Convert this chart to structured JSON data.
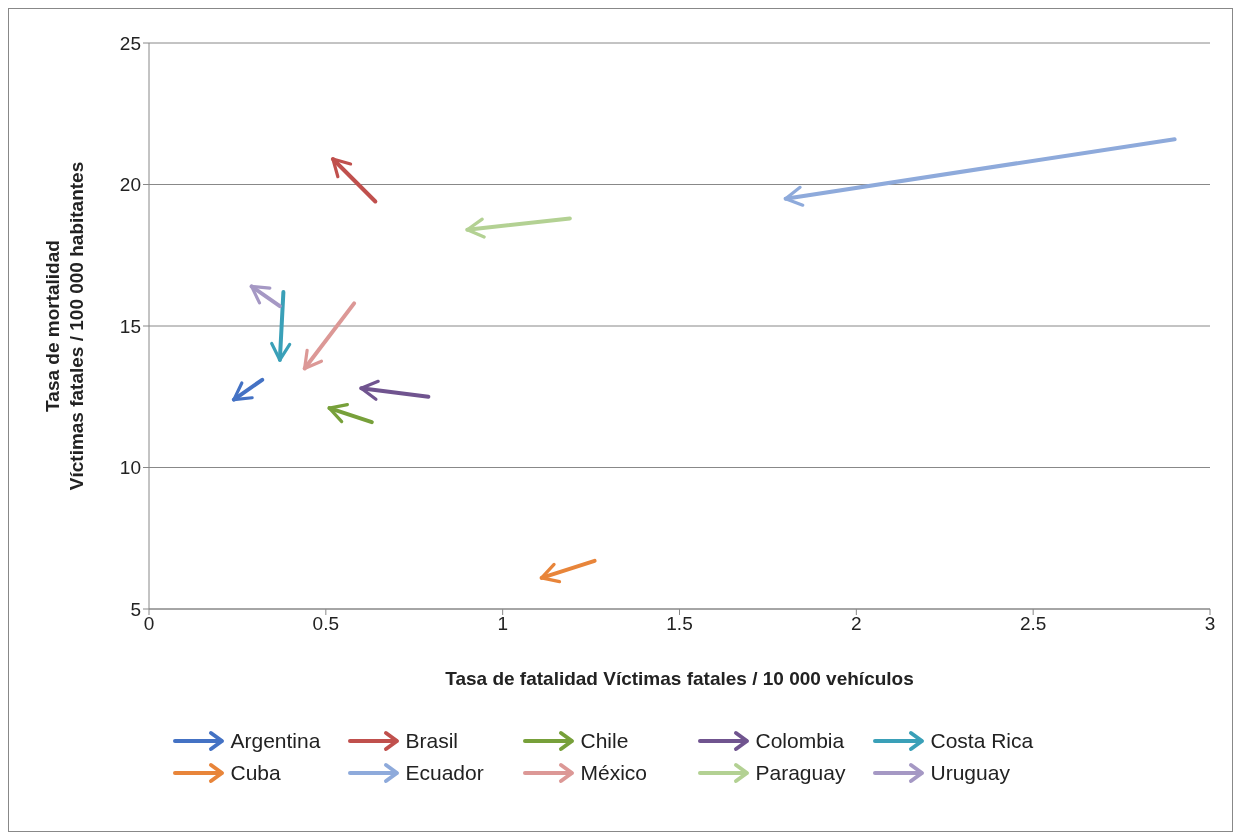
{
  "chart_data": {
    "type": "line",
    "xlabel": "Tasa de fatalidad     Víctimas fatales / 10 000 vehículos",
    "ylabel": "Tasa de mortalidad\nVíctimas fatales / 100 000 habitantes",
    "xlim": [
      0,
      3
    ],
    "xticks": [
      0,
      0.5,
      1,
      1.5,
      2,
      2.5,
      3
    ],
    "ylim": [
      5,
      25
    ],
    "yticks": [
      5,
      10,
      15,
      20,
      25
    ],
    "grid": "y",
    "legend": "bottom",
    "series": [
      {
        "name": "Argentina",
        "color": "#4472c4",
        "x": [
          0.32,
          0.24
        ],
        "values": [
          13.1,
          12.4
        ]
      },
      {
        "name": "Brasil",
        "color": "#c0504d",
        "x": [
          0.64,
          0.52
        ],
        "values": [
          19.4,
          20.9
        ]
      },
      {
        "name": "Chile",
        "color": "#77a03a",
        "x": [
          0.63,
          0.51
        ],
        "values": [
          11.6,
          12.1
        ]
      },
      {
        "name": "Colombia",
        "color": "#70548f",
        "x": [
          0.79,
          0.6
        ],
        "values": [
          12.5,
          12.8
        ]
      },
      {
        "name": "Costa Rica",
        "color": "#3aa0b8",
        "x": [
          0.38,
          0.37
        ],
        "values": [
          16.2,
          13.8
        ]
      },
      {
        "name": "Cuba",
        "color": "#e8853a",
        "x": [
          1.26,
          1.11
        ],
        "values": [
          6.7,
          6.1
        ]
      },
      {
        "name": "Ecuador",
        "color": "#8eaadb",
        "x": [
          2.9,
          1.8
        ],
        "values": [
          21.6,
          19.5
        ]
      },
      {
        "name": "México",
        "color": "#dc9896",
        "x": [
          0.58,
          0.44
        ],
        "values": [
          15.8,
          13.5
        ]
      },
      {
        "name": "Paraguay",
        "color": "#b3d193",
        "x": [
          1.19,
          0.9
        ],
        "values": [
          18.8,
          18.4
        ]
      },
      {
        "name": "Uruguay",
        "color": "#a598c4",
        "x": [
          0.37,
          0.29
        ],
        "values": [
          15.7,
          16.4
        ]
      }
    ]
  }
}
